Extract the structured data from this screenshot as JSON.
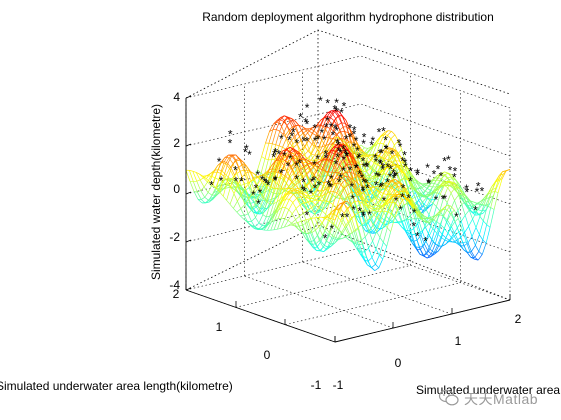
{
  "chart_data": {
    "type": "surface",
    "title": "Random deployment algorithm hydrophone distribution",
    "xlabel": "Simulated underwater area width(kilometre)",
    "ylabel": "Simulated underwater area length(kilometre)",
    "zlabel": "Simulated water depth(kilometre)",
    "xlim": [
      -1,
      2
    ],
    "ylim": [
      -1,
      2
    ],
    "zlim": [
      -4,
      4
    ],
    "x_ticks": [
      "-1",
      "0",
      "1",
      "2"
    ],
    "y_ticks": [
      "-1",
      "0",
      "1",
      "2"
    ],
    "z_ticks": [
      "-4",
      "-2",
      "0",
      "2",
      "4"
    ],
    "grid": true,
    "colormap": "jet",
    "marker": "*",
    "marker_color": "#000000",
    "hydrophone_count": 200
  },
  "watermark": "天天Matlab"
}
